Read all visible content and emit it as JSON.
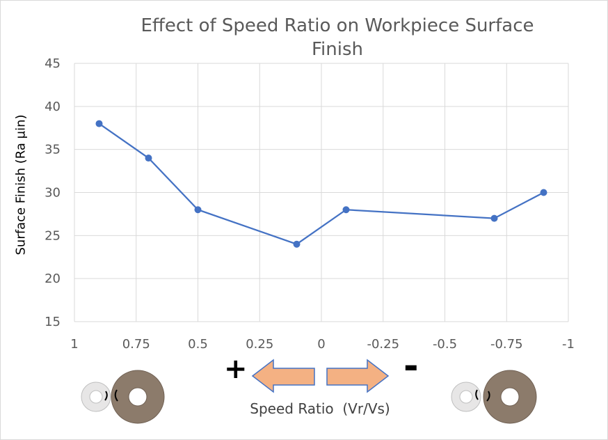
{
  "chart_data": {
    "type": "line",
    "title_line1": "Effect of Speed Ratio on Workpiece Surface",
    "title_line2": "Finish",
    "xlabel": "Speed Ratio  (Vr/Vs)",
    "ylabel": "Surface Finish (Ra µin)",
    "xlim": [
      1,
      -1
    ],
    "ylim": [
      15,
      45
    ],
    "x_ticks": [
      1,
      0.75,
      0.5,
      0.25,
      0,
      -0.25,
      -0.5,
      -0.75,
      -1
    ],
    "x_tick_labels": [
      "1",
      "0.75",
      "0.5",
      "0.25",
      "0",
      "-0.25",
      "-0.5",
      "-0.75",
      "-1"
    ],
    "y_ticks": [
      15,
      20,
      25,
      30,
      35,
      40,
      45
    ],
    "grid": true,
    "series": [
      {
        "x": [
          0.9,
          0.7,
          0.5,
          0.1,
          -0.1,
          -0.7,
          -0.9
        ],
        "y": [
          38,
          34,
          28,
          24,
          28,
          27,
          30
        ],
        "color": "#4472c4"
      }
    ]
  },
  "annotations": {
    "plus_sign": "+",
    "minus_sign": "-",
    "arrow_color": "#f4b183",
    "arrow_stroke": "#4472c4"
  }
}
